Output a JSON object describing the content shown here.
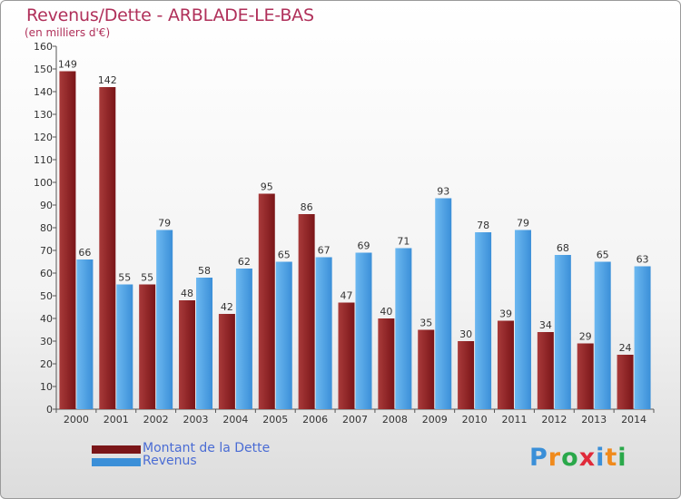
{
  "title": "Revenus/Dette - ARBLADE-LE-BAS",
  "unit_label": "(en milliers d'€)",
  "colors": {
    "dette": "#7a1518",
    "dette_highlight": "#a83a3a",
    "revenus": "#3b8fd8",
    "revenus_highlight": "#6cb8f0",
    "title": "#b0305a",
    "legend_text": "#4a6cd4"
  },
  "legend": [
    {
      "label": "Montant de la Dette",
      "color": "#7a1518"
    },
    {
      "label": "Revenus",
      "color": "#3b8fd8"
    }
  ],
  "logo": {
    "text": "Proxiti",
    "letters": [
      {
        "ch": "P",
        "color": "#3a8fd8"
      },
      {
        "ch": "r",
        "color": "#f08a1c"
      },
      {
        "ch": "o",
        "color": "#2aa84a"
      },
      {
        "ch": "x",
        "color": "#e02a3a"
      },
      {
        "ch": "i",
        "color": "#3a8fd8"
      },
      {
        "ch": "t",
        "color": "#f08a1c"
      },
      {
        "ch": "i",
        "color": "#2aa84a"
      }
    ]
  },
  "chart_data": {
    "type": "bar",
    "title": "Revenus/Dette - ARBLADE-LE-BAS",
    "subtitle": "(en milliers d'€)",
    "xlabel": "",
    "ylabel": "",
    "categories": [
      "2000",
      "2001",
      "2002",
      "2003",
      "2004",
      "2005",
      "2006",
      "2007",
      "2008",
      "2009",
      "2010",
      "2011",
      "2012",
      "2013",
      "2014"
    ],
    "series": [
      {
        "name": "Montant de la Dette",
        "values": [
          149,
          142,
          55,
          48,
          42,
          95,
          86,
          47,
          40,
          35,
          30,
          39,
          34,
          29,
          24
        ]
      },
      {
        "name": "Revenus",
        "values": [
          66,
          55,
          79,
          58,
          62,
          65,
          67,
          69,
          71,
          93,
          78,
          79,
          68,
          65,
          63
        ]
      }
    ],
    "ylim": [
      0,
      160
    ],
    "ytick_step": 10,
    "grid": false,
    "legend_position": "bottom-left",
    "data_labels": true
  }
}
